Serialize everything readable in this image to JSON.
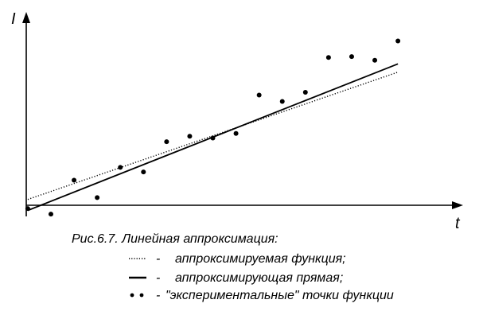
{
  "chart_data": {
    "type": "scatter",
    "xlabel": "t",
    "ylabel": "I",
    "x": [
      0,
      1,
      2,
      3,
      4,
      5,
      6,
      7,
      8,
      9,
      10,
      11,
      12,
      13,
      14,
      15,
      16
    ],
    "series": [
      {
        "name": "аппроксимируемая функция;",
        "style": "dotted",
        "values": [
          1.2,
          15.1
        ]
      },
      {
        "name": "аппроксимирующая прямая;",
        "style": "solid",
        "values": [
          0,
          16.0
        ]
      },
      {
        "name": "\"экспериментальные\" точки функции",
        "style": "dots",
        "values": [
          0.2,
          -0.4,
          3.3,
          1.4,
          4.7,
          4.2,
          7.5,
          8.1,
          7.9,
          8.4,
          12.6,
          11.9,
          12.9,
          16.7,
          16.8,
          16.4,
          18.5
        ]
      }
    ],
    "xlim": [
      -0.1,
      18.3
    ],
    "ylim": [
      -1,
      21.5
    ],
    "grid": false
  },
  "caption": {
    "title": "Рис.6.7. Линейная аппроксимация:",
    "legend": [
      {
        "separator": "-",
        "text": "аппроксимируемая функция;"
      },
      {
        "separator": "-",
        "text": "аппроксимирующая прямая;"
      },
      {
        "separator": "-",
        "text": "\"экспериментальные\" точки функции"
      }
    ]
  },
  "colors": {
    "ink": "#000000",
    "background": "#ffffff"
  }
}
